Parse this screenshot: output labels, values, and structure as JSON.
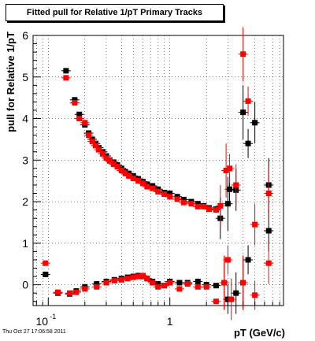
{
  "footer_timestamp": "Thu Oct 27 17:06:58 2011",
  "chart_data": {
    "type": "scatter",
    "title": "Fitted pull for Relative 1/pT  Primary Tracks",
    "xlabel": "pT (GeV/c)",
    "ylabel": "pull for Relative 1/pT",
    "x_scale": "log",
    "xlim": [
      0.075,
      8.6
    ],
    "ylim": [
      -0.5,
      6
    ],
    "x_tick_labels": [
      {
        "value": 0.1,
        "base": "10",
        "exp": "-1"
      },
      {
        "value": 1,
        "label": "1"
      }
    ],
    "y_tick_labels": [
      "0",
      "1",
      "2",
      "3",
      "4",
      "5",
      "6"
    ],
    "y_ticks": [
      0,
      1,
      2,
      3,
      4,
      5,
      6
    ],
    "grid": true,
    "series": [
      {
        "color": "#000000",
        "marker": "square",
        "points": [
          [
            0.14,
            5.15
          ],
          [
            0.165,
            4.45
          ],
          [
            0.18,
            4.1
          ],
          [
            0.2,
            3.85
          ],
          [
            0.215,
            3.65
          ],
          [
            0.23,
            3.5
          ],
          [
            0.245,
            3.4
          ],
          [
            0.26,
            3.3
          ],
          [
            0.28,
            3.2
          ],
          [
            0.3,
            3.1
          ],
          [
            0.32,
            3.0
          ],
          [
            0.345,
            2.95
          ],
          [
            0.37,
            2.88
          ],
          [
            0.4,
            2.8
          ],
          [
            0.43,
            2.72
          ],
          [
            0.46,
            2.68
          ],
          [
            0.5,
            2.62
          ],
          [
            0.55,
            2.55
          ],
          [
            0.6,
            2.48
          ],
          [
            0.65,
            2.42
          ],
          [
            0.72,
            2.38
          ],
          [
            0.8,
            2.3
          ],
          [
            0.9,
            2.22
          ],
          [
            1.0,
            2.2
          ],
          [
            1.15,
            2.12
          ],
          [
            1.3,
            2.05
          ],
          [
            1.5,
            2.0
          ],
          [
            1.7,
            1.95
          ],
          [
            1.9,
            1.9
          ],
          [
            2.1,
            1.85
          ],
          [
            2.4,
            1.82
          ],
          [
            2.6,
            1.6
          ],
          [
            3.0,
            1.95
          ],
          [
            3.1,
            2.3
          ],
          [
            3.5,
            2.28
          ],
          [
            4.0,
            4.15
          ],
          [
            4.4,
            3.4
          ],
          [
            5.0,
            3.9
          ],
          [
            6.5,
            2.4
          ],
          [
            0.095,
            0.25
          ],
          [
            0.12,
            -0.2
          ],
          [
            0.15,
            -0.22
          ],
          [
            0.17,
            -0.15
          ],
          [
            0.2,
            -0.05
          ],
          [
            0.25,
            0.02
          ],
          [
            0.3,
            0.08
          ],
          [
            0.35,
            0.12
          ],
          [
            0.4,
            0.15
          ],
          [
            0.45,
            0.18
          ],
          [
            0.5,
            0.2
          ],
          [
            0.55,
            0.22
          ],
          [
            0.6,
            0.2
          ],
          [
            0.65,
            0.15
          ],
          [
            0.72,
            0.08
          ],
          [
            0.8,
            0.02
          ],
          [
            0.9,
            -0.02
          ],
          [
            1.0,
            0.08
          ],
          [
            1.2,
            0.05
          ],
          [
            1.4,
            0.05
          ],
          [
            1.7,
            0.08
          ],
          [
            2.0,
            0.0
          ],
          [
            2.4,
            -0.02
          ],
          [
            2.8,
            0.05
          ],
          [
            3.0,
            -0.35
          ],
          [
            3.5,
            -0.2
          ],
          [
            4.0,
            0.05
          ],
          [
            4.4,
            0.6
          ],
          [
            6.5,
            1.3
          ]
        ]
      },
      {
        "color": "#ff0000",
        "marker": "square",
        "points": [
          [
            0.14,
            4.98
          ],
          [
            0.165,
            4.38
          ],
          [
            0.18,
            4.0
          ],
          [
            0.2,
            3.9
          ],
          [
            0.215,
            3.6
          ],
          [
            0.23,
            3.45
          ],
          [
            0.245,
            3.35
          ],
          [
            0.26,
            3.25
          ],
          [
            0.28,
            3.15
          ],
          [
            0.3,
            3.05
          ],
          [
            0.32,
            2.98
          ],
          [
            0.345,
            2.9
          ],
          [
            0.37,
            2.84
          ],
          [
            0.4,
            2.75
          ],
          [
            0.43,
            2.68
          ],
          [
            0.46,
            2.62
          ],
          [
            0.5,
            2.56
          ],
          [
            0.55,
            2.5
          ],
          [
            0.6,
            2.44
          ],
          [
            0.65,
            2.36
          ],
          [
            0.72,
            2.32
          ],
          [
            0.8,
            2.24
          ],
          [
            0.9,
            2.18
          ],
          [
            1.0,
            2.12
          ],
          [
            1.15,
            2.06
          ],
          [
            1.3,
            1.98
          ],
          [
            1.5,
            1.95
          ],
          [
            1.7,
            1.88
          ],
          [
            1.9,
            1.88
          ],
          [
            2.1,
            1.82
          ],
          [
            2.4,
            1.8
          ],
          [
            2.6,
            1.9
          ],
          [
            2.9,
            2.75
          ],
          [
            3.1,
            2.8
          ],
          [
            3.5,
            2.4
          ],
          [
            4.0,
            5.55
          ],
          [
            4.4,
            4.42
          ],
          [
            5.0,
            1.45
          ],
          [
            6.5,
            2.2
          ],
          [
            0.095,
            0.52
          ],
          [
            0.12,
            -0.18
          ],
          [
            0.15,
            -0.2
          ],
          [
            0.17,
            -0.18
          ],
          [
            0.2,
            -0.1
          ],
          [
            0.25,
            -0.05
          ],
          [
            0.3,
            0.05
          ],
          [
            0.35,
            0.1
          ],
          [
            0.4,
            0.12
          ],
          [
            0.45,
            0.15
          ],
          [
            0.5,
            0.18
          ],
          [
            0.55,
            0.2
          ],
          [
            0.6,
            0.22
          ],
          [
            0.65,
            0.15
          ],
          [
            0.72,
            0.05
          ],
          [
            0.8,
            -0.05
          ],
          [
            0.9,
            -0.02
          ],
          [
            1.0,
            0.05
          ],
          [
            1.2,
            -0.1
          ],
          [
            1.4,
            0.02
          ],
          [
            1.7,
            -0.05
          ],
          [
            2.0,
            -0.05
          ],
          [
            2.4,
            -0.4
          ],
          [
            2.8,
            0.05
          ],
          [
            3.0,
            0.6
          ],
          [
            3.2,
            -0.35
          ],
          [
            4.0,
            0.05
          ],
          [
            5.0,
            -0.25
          ],
          [
            6.5,
            0.52
          ]
        ]
      }
    ]
  }
}
